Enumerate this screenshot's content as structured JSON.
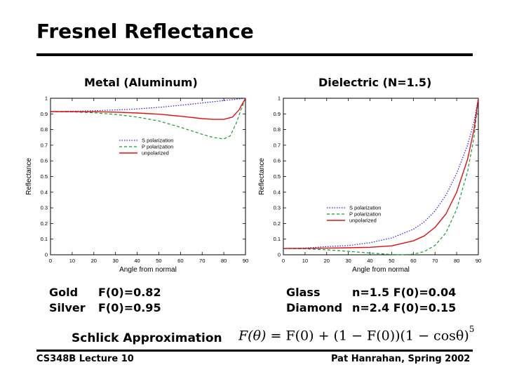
{
  "slide": {
    "title": "Fresnel Reflectance",
    "footer_left": "CS348B Lecture 10",
    "footer_right": "Pat Hanrahan, Spring 2002"
  },
  "chart_data": [
    {
      "type": "line",
      "title": "Metal (Aluminum)",
      "xlabel": "Angle from normal",
      "ylabel": "Reflectance",
      "xlim": [
        0,
        90
      ],
      "ylim": [
        0,
        1
      ],
      "x_ticks": [
        0,
        10,
        20,
        30,
        40,
        50,
        60,
        70,
        80,
        90
      ],
      "y_ticks": [
        0,
        0.1,
        0.2,
        0.3,
        0.4,
        0.5,
        0.6,
        0.7,
        0.8,
        0.9,
        1
      ],
      "x_tick_labels": [
        "0",
        "10",
        "20",
        "30",
        "40",
        "50",
        "60",
        "70",
        "80",
        "90"
      ],
      "y_tick_labels": [
        "0",
        "0.1",
        "0.2",
        "0.3",
        "0.4",
        "0.5",
        "0.6",
        "0.7",
        "0.8",
        "0.9",
        "1"
      ],
      "legend_position": "upper-middle",
      "series": [
        {
          "name": "S polarization",
          "color": "#1a1aff",
          "style": "dotted",
          "x": [
            0,
            10,
            20,
            30,
            40,
            50,
            60,
            70,
            80,
            85,
            90
          ],
          "y": [
            0.915,
            0.917,
            0.92,
            0.925,
            0.932,
            0.942,
            0.955,
            0.97,
            0.985,
            0.993,
            1.0
          ]
        },
        {
          "name": "P polarization",
          "color": "#129c2e",
          "style": "dashed",
          "x": [
            0,
            10,
            20,
            30,
            40,
            50,
            60,
            70,
            75,
            80,
            83,
            86,
            88,
            90
          ],
          "y": [
            0.915,
            0.913,
            0.907,
            0.897,
            0.88,
            0.855,
            0.815,
            0.77,
            0.75,
            0.74,
            0.76,
            0.85,
            0.93,
            1.0
          ]
        },
        {
          "name": "unpolarized",
          "color": "#e01010",
          "style": "solid",
          "x": [
            0,
            10,
            20,
            30,
            40,
            50,
            60,
            70,
            75,
            80,
            84,
            87,
            90
          ],
          "y": [
            0.915,
            0.915,
            0.914,
            0.911,
            0.906,
            0.898,
            0.885,
            0.87,
            0.865,
            0.865,
            0.88,
            0.925,
            1.0
          ]
        }
      ]
    },
    {
      "type": "line",
      "title": "Dielectric (N=1.5)",
      "xlabel": "Angle from normal",
      "ylabel": "Reflectance",
      "xlim": [
        0,
        90
      ],
      "ylim": [
        0,
        1
      ],
      "x_ticks": [
        0,
        10,
        20,
        30,
        40,
        50,
        60,
        70,
        80,
        90
      ],
      "y_ticks": [
        0,
        0.1,
        0.2,
        0.3,
        0.4,
        0.5,
        0.6,
        0.7,
        0.8,
        0.9,
        1
      ],
      "x_tick_labels": [
        "0",
        "10",
        "20",
        "30",
        "40",
        "50",
        "60",
        "70",
        "80",
        "90"
      ],
      "y_tick_labels": [
        "0",
        "0.1",
        "0.2",
        "0.3",
        "0.4",
        "0.5",
        "0.6",
        "0.7",
        "0.8",
        "0.9",
        "1"
      ],
      "legend_position": "middle-center",
      "series": [
        {
          "name": "S polarization",
          "color": "#1a1aff",
          "style": "dotted",
          "x": [
            0,
            10,
            20,
            30,
            40,
            50,
            60,
            65,
            70,
            75,
            80,
            85,
            88,
            90
          ],
          "y": [
            0.04,
            0.043,
            0.052,
            0.059,
            0.077,
            0.107,
            0.163,
            0.21,
            0.28,
            0.38,
            0.52,
            0.7,
            0.85,
            1.0
          ]
        },
        {
          "name": "P polarization",
          "color": "#129c2e",
          "style": "dashed",
          "x": [
            0,
            10,
            20,
            30,
            40,
            50,
            55,
            60,
            65,
            70,
            75,
            80,
            85,
            88,
            90
          ],
          "y": [
            0.04,
            0.038,
            0.032,
            0.022,
            0.011,
            0.002,
            0.0,
            0.004,
            0.02,
            0.06,
            0.14,
            0.29,
            0.53,
            0.75,
            1.0
          ]
        },
        {
          "name": "unpolarized",
          "color": "#e01010",
          "style": "solid",
          "x": [
            0,
            10,
            20,
            30,
            40,
            50,
            60,
            65,
            70,
            75,
            80,
            85,
            88,
            90
          ],
          "y": [
            0.04,
            0.041,
            0.042,
            0.045,
            0.048,
            0.057,
            0.089,
            0.12,
            0.175,
            0.26,
            0.4,
            0.61,
            0.8,
            1.0
          ]
        }
      ]
    }
  ],
  "metal_info": {
    "gold_name": "Gold",
    "gold_value": "F(0)=0.82",
    "silver_name": "Silver",
    "silver_value": "F(0)=0.95"
  },
  "dielectric_info": {
    "glass_name": "Glass",
    "glass_value": "n=1.5 F(0)=0.04",
    "diamond_name": "Diamond",
    "diamond_value": "n=2.4 F(0)=0.15"
  },
  "schlick": {
    "label": "Schlick Approximation",
    "formula_lhs": "F(θ)",
    "formula_eq": " = ",
    "formula_rhs": "F(0) + (1 − F(0))(1 − cosθ)",
    "formula_exp": "5"
  }
}
